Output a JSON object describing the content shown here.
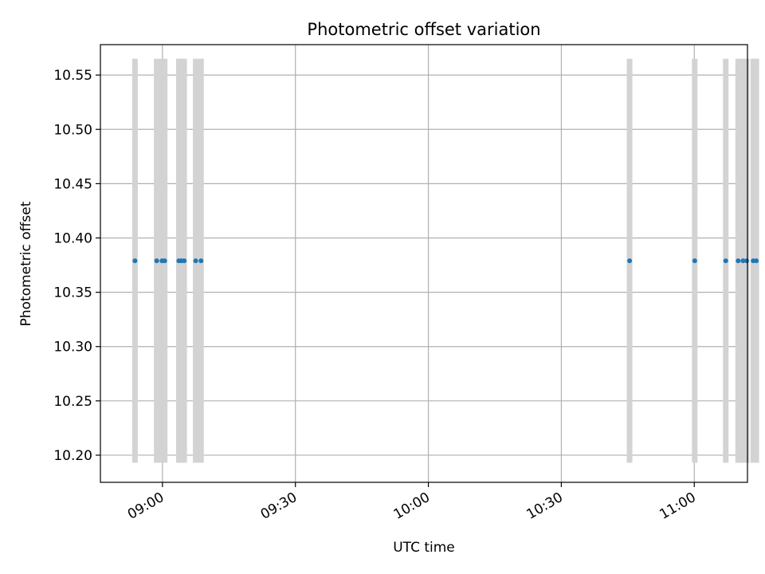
{
  "chart_data": {
    "type": "scatter",
    "title": "Photometric offset variation",
    "xlabel": "UTC time",
    "ylabel": "Photometric offset",
    "xlim": [
      "08:46",
      "11:12"
    ],
    "ylim": [
      10.175,
      10.578
    ],
    "grid": true,
    "xticks": [
      "09:00",
      "09:30",
      "10:00",
      "10:30",
      "11:00"
    ],
    "yticks": [
      10.2,
      10.25,
      10.3,
      10.35,
      10.4,
      10.45,
      10.5,
      10.55
    ],
    "error_bar_range": [
      10.193,
      10.565
    ],
    "colors": {
      "points": "#1f77b4",
      "error_bars": "#d3d3d3",
      "grid": "#b0b0b0"
    },
    "series": [
      {
        "points": [
          {
            "x": "08:53:48",
            "y": 10.379
          },
          {
            "x": "08:58:42",
            "y": 10.379
          },
          {
            "x": "08:59:54",
            "y": 10.379
          },
          {
            "x": "09:00:30",
            "y": 10.379
          },
          {
            "x": "09:03:42",
            "y": 10.379
          },
          {
            "x": "09:04:18",
            "y": 10.379
          },
          {
            "x": "09:04:54",
            "y": 10.379
          },
          {
            "x": "09:07:30",
            "y": 10.379
          },
          {
            "x": "09:08:42",
            "y": 10.379
          },
          {
            "x": "10:45:24",
            "y": 10.379
          },
          {
            "x": "11:00:06",
            "y": 10.379
          },
          {
            "x": "11:07:06",
            "y": 10.379
          },
          {
            "x": "11:09:54",
            "y": 10.379
          },
          {
            "x": "11:11:00",
            "y": 10.379
          },
          {
            "x": "11:11:48",
            "y": 10.379
          },
          {
            "x": "11:13:18",
            "y": 10.379
          },
          {
            "x": "11:14:00",
            "y": 10.379
          }
        ]
      }
    ]
  }
}
